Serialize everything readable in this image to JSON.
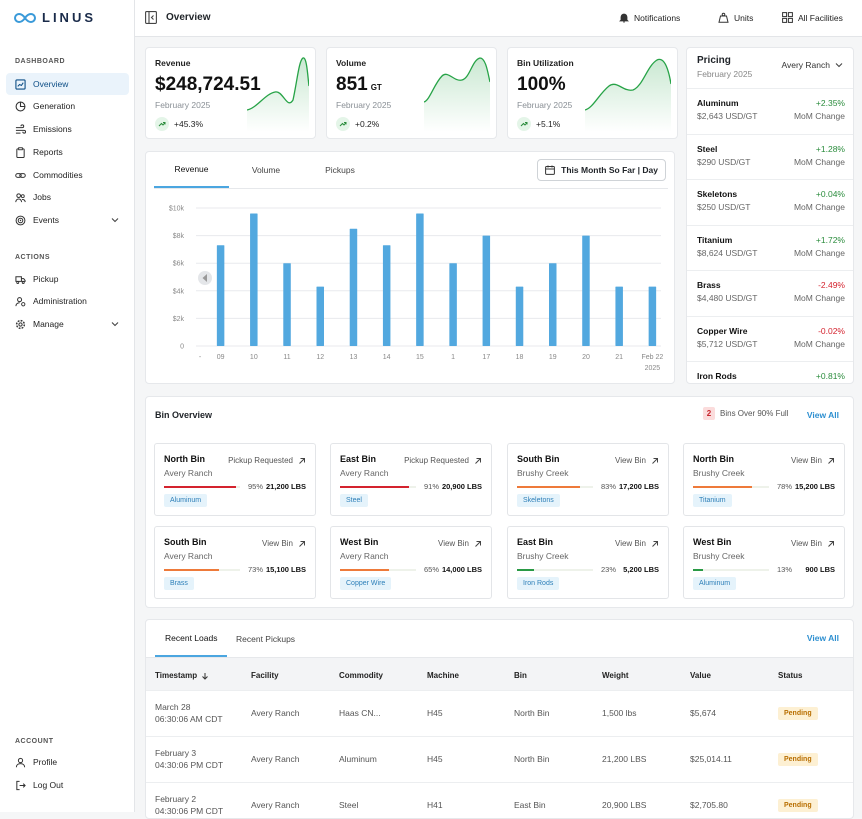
{
  "app": {
    "logo": "LINUS"
  },
  "sidebar": {
    "dashboard_label": "DASHBOARD",
    "actions_label": "ACTIONS",
    "account_label": "ACCOUNT",
    "dashboard_items": [
      {
        "label": "Overview",
        "icon": "chart-icon"
      },
      {
        "label": "Generation",
        "icon": "pie-icon"
      },
      {
        "label": "Emissions",
        "icon": "wind-icon"
      },
      {
        "label": "Reports",
        "icon": "clipboard-icon"
      },
      {
        "label": "Commodities",
        "icon": "link-icon"
      },
      {
        "label": "Jobs",
        "icon": "users-icon"
      },
      {
        "label": "Events",
        "icon": "target-icon"
      }
    ],
    "action_items": [
      {
        "label": "Pickup",
        "icon": "truck-icon"
      },
      {
        "label": "Administration",
        "icon": "admin-icon"
      },
      {
        "label": "Manage",
        "icon": "gear-icon"
      }
    ],
    "account_items": [
      {
        "label": "Profile",
        "icon": "user-icon"
      },
      {
        "label": "Log Out",
        "icon": "logout-icon"
      }
    ]
  },
  "header": {
    "title": "Overview",
    "notifications": "Notifications",
    "units": "Units",
    "facilities": "All Facilities"
  },
  "kpis": [
    {
      "label": "Revenue",
      "value": "$248,724.51",
      "unit": "",
      "period": "February 2025",
      "change": "+45.3%"
    },
    {
      "label": "Volume",
      "value": "851",
      "unit": "GT",
      "period": "February 2025",
      "change": "+0.2%"
    },
    {
      "label": "Bin Utilization",
      "value": "100%",
      "unit": "",
      "period": "February 2025",
      "change": "+5.1%"
    }
  ],
  "chart_panel": {
    "tabs": [
      "Revenue",
      "Volume",
      "Pickups"
    ],
    "date_button": "This Month So Far | Day"
  },
  "chart_data": {
    "type": "bar",
    "categories": [
      "09",
      "10",
      "11",
      "12",
      "13",
      "14",
      "15",
      "1",
      "17",
      "18",
      "19",
      "20",
      "21",
      "Feb 22"
    ],
    "x_extra_label": "2025",
    "y_tick_labels": [
      "$10k",
      "$8k",
      "$6k",
      "$4k",
      "$2k",
      "0"
    ],
    "ylim": [
      0,
      10000
    ],
    "values": [
      7300,
      9600,
      6000,
      4300,
      8500,
      7300,
      9600,
      6000,
      8000,
      4300,
      6000,
      8000,
      4300,
      4300
    ],
    "bar_color": "#52a8df",
    "grid": true
  },
  "pricing": {
    "title": "Pricing",
    "period": "February 2025",
    "location": "Avery Ranch",
    "items": [
      {
        "name": "Aluminum",
        "price": "$2,643 USD/GT",
        "change": "+2.35%",
        "dir": "pos",
        "label": "MoM Change"
      },
      {
        "name": "Steel",
        "price": "$290 USD/GT",
        "change": "+1.28%",
        "dir": "pos",
        "label": "MoM Change"
      },
      {
        "name": "Skeletons",
        "price": "$250 USD/GT",
        "change": "+0.04%",
        "dir": "pos",
        "label": "MoM Change"
      },
      {
        "name": "Titanium",
        "price": "$8,624 USD/GT",
        "change": "+1.72%",
        "dir": "pos",
        "label": "MoM Change"
      },
      {
        "name": "Brass",
        "price": "$4,480 USD/GT",
        "change": "-2.49%",
        "dir": "neg",
        "label": "MoM Change"
      },
      {
        "name": "Copper Wire",
        "price": "$5,712 USD/GT",
        "change": "-0.02%",
        "dir": "neg",
        "label": "MoM Change"
      },
      {
        "name": "Iron Rods",
        "price": "",
        "change": "+0.81%",
        "dir": "pos",
        "label": ""
      }
    ]
  },
  "bin_overview": {
    "title": "Bin Overview",
    "alert_count": "2",
    "alert_text": "Bins Over 90% Full",
    "view_all": "View All",
    "bins": [
      {
        "name": "North Bin",
        "location": "Avery Ranch",
        "action": "Pickup Requested",
        "percent": "95%",
        "fill": 0.95,
        "color": "#d4232e",
        "lbs": "21,200 LBS",
        "material": "Aluminum"
      },
      {
        "name": "East Bin",
        "location": "Avery Ranch",
        "action": "Pickup Requested",
        "percent": "91%",
        "fill": 0.91,
        "color": "#d4232e",
        "lbs": "20,900 LBS",
        "material": "Steel"
      },
      {
        "name": "South Bin",
        "location": "Brushy Creek",
        "action": "View Bin",
        "percent": "83%",
        "fill": 0.83,
        "color": "#ee7a3a",
        "lbs": "17,200 LBS",
        "material": "Skeletons"
      },
      {
        "name": "North Bin",
        "location": "Brushy Creek",
        "action": "View Bin",
        "percent": "78%",
        "fill": 0.78,
        "color": "#ee7a3a",
        "lbs": "15,200 LBS",
        "material": "Titanium"
      },
      {
        "name": "South Bin",
        "location": "Avery Ranch",
        "action": "View Bin",
        "percent": "73%",
        "fill": 0.73,
        "color": "#ee7a3a",
        "lbs": "15,100 LBS",
        "material": "Brass"
      },
      {
        "name": "West Bin",
        "location": "Avery Ranch",
        "action": "View Bin",
        "percent": "65%",
        "fill": 0.65,
        "color": "#ee7a3a",
        "lbs": "14,000 LBS",
        "material": "Copper Wire"
      },
      {
        "name": "East Bin",
        "location": "Brushy Creek",
        "action": "View Bin",
        "percent": "23%",
        "fill": 0.23,
        "color": "#2a9a45",
        "lbs": "5,200 LBS",
        "material": "Iron Rods"
      },
      {
        "name": "West Bin",
        "location": "Brushy Creek",
        "action": "View Bin",
        "percent": "13%",
        "fill": 0.13,
        "color": "#2a9a45",
        "lbs": "900 LBS",
        "material": "Aluminum"
      }
    ]
  },
  "loads": {
    "tabs": [
      "Recent Loads",
      "Recent Pickups"
    ],
    "view_all": "View All",
    "columns": [
      "Timestamp",
      "Facility",
      "Commodity",
      "Machine",
      "Bin",
      "Weight",
      "Value",
      "Status"
    ],
    "rows": [
      {
        "date": "March 28",
        "time": "06:30:06 AM CDT",
        "facility": "Avery Ranch",
        "commodity": "Haas CN...",
        "machine": "H45",
        "bin": "North Bin",
        "weight": "1,500 lbs",
        "value": "$5,674",
        "status": "Pending"
      },
      {
        "date": "February 3",
        "time": "04:30:06 PM CDT",
        "facility": "Avery Ranch",
        "commodity": "Aluminum",
        "machine": "H45",
        "bin": "North Bin",
        "weight": "21,200 LBS",
        "value": "$25,014.11",
        "status": "Pending"
      },
      {
        "date": "February 2",
        "time": "04:30:06 PM CDT",
        "facility": "Avery Ranch",
        "commodity": "Steel",
        "machine": "H41",
        "bin": "East Bin",
        "weight": "20,900 LBS",
        "value": "$2,705.80",
        "status": "Pending"
      }
    ]
  }
}
